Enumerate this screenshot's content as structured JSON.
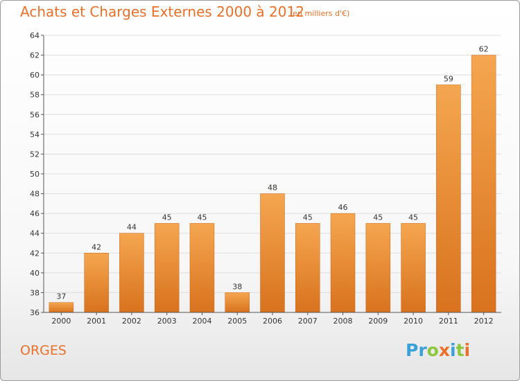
{
  "header": {
    "title": "Achats et Charges Externes 2000 à 2012",
    "subtitle": "(en milliers d'€)"
  },
  "footer": {
    "city": "ORGES",
    "brand_letters": [
      {
        "ch": "P",
        "color": "#3aa0d8"
      },
      {
        "ch": "r",
        "color": "#3aa0d8"
      },
      {
        "ch": "o",
        "color": "#8dc63f"
      },
      {
        "ch": "x",
        "color": "#e8702a"
      },
      {
        "ch": "i",
        "color": "#3aa0d8"
      },
      {
        "ch": "t",
        "color": "#8dc63f"
      },
      {
        "ch": "i",
        "color": "#e8702a"
      }
    ]
  },
  "colors": {
    "accent": "#e8702a",
    "bar_light": "#f5a650",
    "bar_dark": "#d8721e",
    "axis": "#555555",
    "grid": "#dddddd"
  },
  "chart_data": {
    "type": "bar",
    "title": "Achats et Charges Externes 2000 à 2012",
    "subtitle": "(en milliers d'€)",
    "categories": [
      "2000",
      "2001",
      "2002",
      "2003",
      "2004",
      "2005",
      "2006",
      "2007",
      "2008",
      "2009",
      "2010",
      "2011",
      "2012"
    ],
    "values": [
      37,
      42,
      44,
      45,
      45,
      38,
      48,
      45,
      46,
      45,
      45,
      59,
      62
    ],
    "ylim": [
      36,
      64
    ],
    "yticks": [
      36,
      38,
      40,
      42,
      44,
      46,
      48,
      50,
      52,
      54,
      56,
      58,
      60,
      62,
      64
    ],
    "grid": true,
    "data_labels": true
  }
}
